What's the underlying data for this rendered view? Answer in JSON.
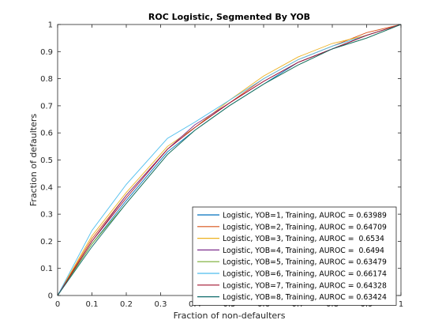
{
  "chart_data": {
    "type": "line",
    "title": "ROC Logistic, Segmented By YOB",
    "xlabel": "Fraction of non-defaulters",
    "ylabel": "Fraction of defaulters",
    "xlim": [
      0,
      1
    ],
    "ylim": [
      0,
      1
    ],
    "xticks": [
      "0",
      "0.1",
      "0.2",
      "0.3",
      "0.4",
      "0.5",
      "0.6",
      "0.7",
      "0.8",
      "0.9",
      "1"
    ],
    "yticks": [
      "0",
      "0.1",
      "0.2",
      "0.3",
      "0.4",
      "0.5",
      "0.6",
      "0.7",
      "0.8",
      "0.9",
      "1"
    ],
    "grid": false,
    "legend_position": "bottom-right",
    "series": [
      {
        "name": "Logistic, YOB=1, Training, AUROC = 0.63989",
        "color": "#0072BD",
        "x": [
          0,
          0.1,
          0.2,
          0.32,
          0.4,
          0.5,
          0.6,
          0.7,
          0.8,
          0.9,
          1
        ],
        "y": [
          0,
          0.19,
          0.35,
          0.53,
          0.61,
          0.7,
          0.78,
          0.86,
          0.91,
          0.96,
          1
        ]
      },
      {
        "name": "Logistic, YOB=2, Training, AUROC = 0.64709",
        "color": "#D95319",
        "x": [
          0,
          0.1,
          0.2,
          0.32,
          0.4,
          0.5,
          0.6,
          0.7,
          0.8,
          0.9,
          1
        ],
        "y": [
          0,
          0.21,
          0.37,
          0.54,
          0.62,
          0.71,
          0.8,
          0.87,
          0.92,
          0.97,
          1
        ]
      },
      {
        "name": "Logistic, YOB=3, Training, AUROC =  0.6534",
        "color": "#EDB120",
        "x": [
          0,
          0.1,
          0.2,
          0.32,
          0.4,
          0.5,
          0.6,
          0.7,
          0.8,
          0.9,
          1
        ],
        "y": [
          0,
          0.22,
          0.38,
          0.55,
          0.62,
          0.72,
          0.81,
          0.88,
          0.93,
          0.96,
          1
        ]
      },
      {
        "name": "Logistic, YOB=4, Training, AUROC =  0.6494",
        "color": "#7E2F8E",
        "x": [
          0,
          0.1,
          0.2,
          0.32,
          0.4,
          0.5,
          0.6,
          0.7,
          0.8,
          0.9,
          1
        ],
        "y": [
          0,
          0.2,
          0.37,
          0.54,
          0.63,
          0.71,
          0.79,
          0.86,
          0.91,
          0.96,
          1
        ]
      },
      {
        "name": "Logistic, YOB=5, Training, AUROC = 0.63479",
        "color": "#77AC30",
        "x": [
          0,
          0.1,
          0.2,
          0.32,
          0.4,
          0.5,
          0.6,
          0.7,
          0.8,
          0.9,
          1
        ],
        "y": [
          0,
          0.19,
          0.34,
          0.52,
          0.61,
          0.7,
          0.78,
          0.85,
          0.91,
          0.95,
          1
        ]
      },
      {
        "name": "Logistic, YOB=6, Training, AUROC = 0.66174",
        "color": "#4DBEEE",
        "x": [
          0,
          0.1,
          0.2,
          0.32,
          0.4,
          0.5,
          0.6,
          0.7,
          0.8,
          0.9,
          1
        ],
        "y": [
          0,
          0.24,
          0.41,
          0.58,
          0.64,
          0.72,
          0.8,
          0.87,
          0.92,
          0.96,
          1
        ]
      },
      {
        "name": "Logistic, YOB=7, Training, AUROC = 0.64328",
        "color": "#A2142F",
        "x": [
          0,
          0.1,
          0.2,
          0.32,
          0.4,
          0.5,
          0.6,
          0.7,
          0.8,
          0.9,
          1
        ],
        "y": [
          0,
          0.2,
          0.36,
          0.54,
          0.62,
          0.71,
          0.79,
          0.86,
          0.91,
          0.96,
          1
        ]
      },
      {
        "name": "Logistic, YOB=8, Training, AUROC = 0.63424",
        "color": "#0F6B6B",
        "x": [
          0,
          0.1,
          0.2,
          0.32,
          0.4,
          0.5,
          0.6,
          0.7,
          0.8,
          0.9,
          1
        ],
        "y": [
          0,
          0.18,
          0.34,
          0.52,
          0.61,
          0.7,
          0.78,
          0.85,
          0.91,
          0.95,
          1
        ]
      }
    ]
  }
}
